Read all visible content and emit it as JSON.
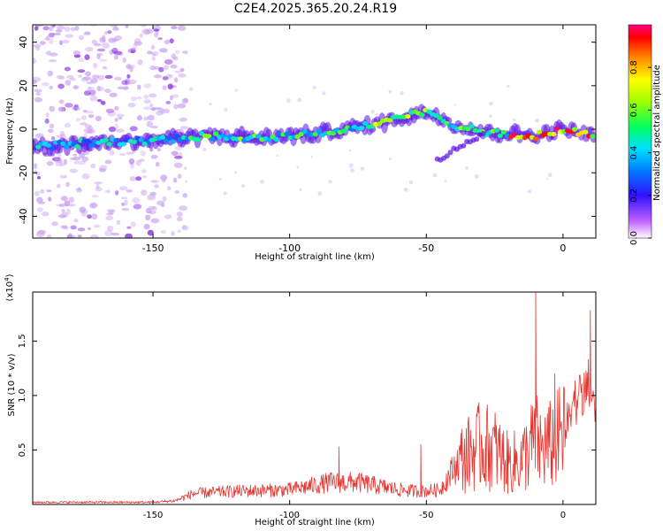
{
  "title": "C2E4.2025.365.20.24.R19",
  "colors": {
    "snr_line": "#e8322c",
    "axis": "#000000",
    "background": "#ffffff"
  },
  "chart_data": [
    {
      "type": "heatmap",
      "name": "spectrogram",
      "xlabel": "Height of straight line (km)",
      "ylabel": "Frequency (Hz)",
      "xlim": [
        -194,
        12
      ],
      "ylim": [
        -50,
        48
      ],
      "xticks": [
        -150,
        -100,
        -50,
        0
      ],
      "yticks": [
        -40,
        -20,
        0,
        20,
        40
      ],
      "ridge": {
        "x": [
          -194,
          -170,
          -150,
          -130,
          -110,
          -100,
          -90,
          -80,
          -70,
          -60,
          -50,
          -45,
          -40,
          -30,
          -20,
          -10,
          0,
          12
        ],
        "y": [
          -8,
          -6,
          -5,
          -3,
          -4,
          -3,
          -2,
          0,
          2,
          5,
          8,
          6,
          2,
          -1,
          -2,
          -3,
          0,
          -3
        ]
      },
      "colorbar": {
        "label": "Normalized spectral amplitude",
        "range": [
          0,
          1
        ],
        "ticks": [
          "0.0",
          "0.2",
          "0.4",
          "0.6",
          "0.8"
        ]
      }
    },
    {
      "type": "line",
      "name": "snr",
      "xlabel": "Height of straight line (km)",
      "ylabel": "SNR (10 * v/v)",
      "multiplier": "(x10",
      "multiplier_exp": "4",
      "xlim": [
        -194,
        12
      ],
      "ylim": [
        0,
        1.95
      ],
      "xticks": [
        -150,
        -100,
        -50,
        0
      ],
      "yticks": [
        "0.5",
        "1.0",
        "1.5"
      ],
      "envelope": {
        "x": [
          -194,
          -150,
          -142,
          -135,
          -120,
          -100,
          -85,
          -75,
          -60,
          -52,
          -45,
          -38,
          -30,
          -25,
          -20,
          -15,
          -10,
          -8,
          -5,
          0,
          5,
          8,
          10,
          12
        ],
        "y": [
          0.03,
          0.03,
          0.05,
          0.15,
          0.18,
          0.2,
          0.3,
          0.3,
          0.2,
          0.18,
          0.2,
          0.6,
          0.8,
          0.75,
          0.55,
          0.6,
          0.9,
          0.75,
          0.8,
          0.95,
          1.05,
          1.1,
          1.2,
          0.9
        ]
      }
    }
  ]
}
